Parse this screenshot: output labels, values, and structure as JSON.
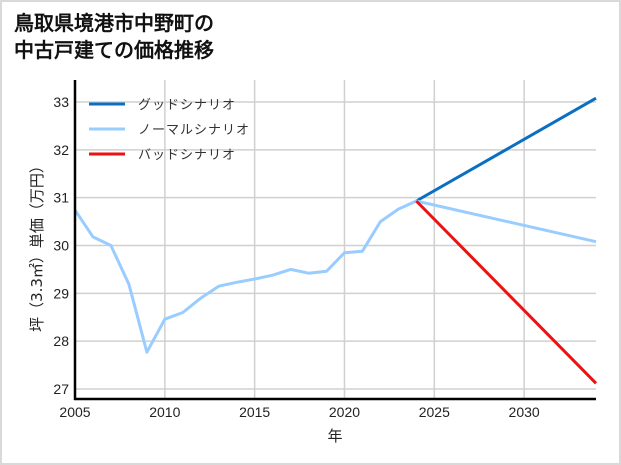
{
  "title": {
    "line1": "鳥取県境港市中野町の",
    "line2": "中古戸建ての価格推移"
  },
  "colors": {
    "good": "#0a6fc2",
    "normal": "#99ccff",
    "bad": "#ee1111",
    "grid": "#d0d0d0",
    "axis": "#000000",
    "frame": "#d9d9d9"
  },
  "chart_data": {
    "type": "line",
    "title": "鳥取県境港市中野町の中古戸建ての価格推移",
    "xlabel": "年",
    "ylabel": "坪（3.3㎡）単価（万円）",
    "xlim": [
      2005,
      2034
    ],
    "ylim": [
      26.8,
      33.3
    ],
    "xticks": [
      2005,
      2010,
      2015,
      2020,
      2025,
      2030
    ],
    "yticks": [
      27,
      28,
      29,
      30,
      31,
      32,
      33
    ],
    "grid": true,
    "legend_position": "upper left",
    "series": [
      {
        "name": "グッドシナリオ",
        "key": "good",
        "x": [
          2024,
          2034
        ],
        "values": [
          30.93,
          33.08
        ]
      },
      {
        "name": "ノーマルシナリオ",
        "key": "normal",
        "x": [
          2005,
          2006,
          2007,
          2008,
          2009,
          2010,
          2011,
          2012,
          2013,
          2014,
          2015,
          2016,
          2017,
          2018,
          2019,
          2020,
          2021,
          2022,
          2023,
          2024,
          2034
        ],
        "values": [
          30.74,
          30.18,
          30.0,
          29.19,
          27.77,
          28.46,
          28.6,
          28.9,
          29.15,
          29.23,
          29.3,
          29.38,
          29.5,
          29.42,
          29.46,
          29.85,
          29.88,
          30.5,
          30.76,
          30.93,
          30.08
        ]
      },
      {
        "name": "バッドシナリオ",
        "key": "bad",
        "x": [
          2024,
          2034
        ],
        "values": [
          30.93,
          27.12
        ]
      }
    ]
  }
}
